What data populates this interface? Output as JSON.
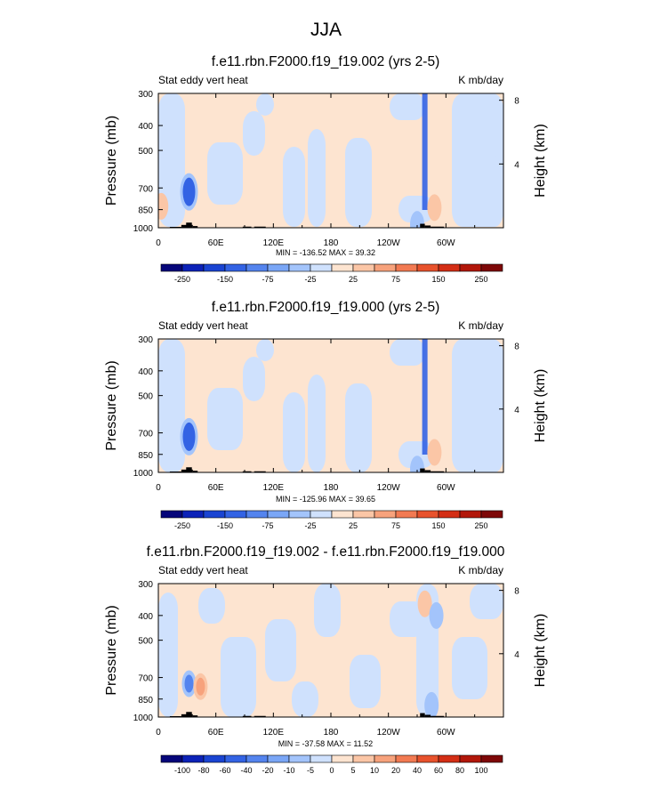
{
  "figure_title": "JJA",
  "chart_data": [
    {
      "type": "contour",
      "title": "f.e11.rbn.F2000.f19_f19.002 (yrs 2-5)",
      "left_label": "Stat eddy vert heat",
      "right_label": "K mb/day",
      "ylabel": "Pressure (mb)",
      "ylabel_right": "Height (km)",
      "x_ticks": [
        "0",
        "60E",
        "120E",
        "180",
        "120W",
        "60W"
      ],
      "x_tick_values": [
        0,
        60,
        120,
        180,
        240,
        300
      ],
      "xlim": [
        0,
        360
      ],
      "y_ticks": [
        "300",
        "400",
        "500",
        "700",
        "850",
        "1000"
      ],
      "y_tick_values": [
        300,
        400,
        500,
        700,
        850,
        1000
      ],
      "ylim": [
        1000,
        300
      ],
      "height_ticks": [
        "8",
        "4"
      ],
      "height_tick_values": [
        8,
        4
      ],
      "min_max": "MIN = -136.52   MAX =  39.32",
      "colorbar_labels": [
        "-250",
        "-150",
        "-75",
        "-25",
        "25",
        "75",
        "150",
        "250"
      ],
      "colorbar_levels": [
        -300,
        -250,
        -200,
        -150,
        -100,
        -75,
        -50,
        -25,
        0,
        25,
        50,
        75,
        100,
        150,
        200,
        250,
        300
      ],
      "features": [
        {
          "lon": 32,
          "p": 725,
          "value": -136.52
        },
        {
          "lon": 278,
          "p": 300,
          "value": -120
        },
        {
          "lon": 3,
          "p": 825,
          "value": 30
        },
        {
          "lon": 288,
          "p": 835,
          "value": 39.32
        },
        {
          "lon": 270,
          "p": 970,
          "value": -50
        }
      ]
    },
    {
      "type": "contour",
      "title": "f.e11.rbn.F2000.f19_f19.000 (yrs 2-5)",
      "left_label": "Stat eddy vert heat",
      "right_label": "K mb/day",
      "ylabel": "Pressure (mb)",
      "ylabel_right": "Height (km)",
      "x_ticks": [
        "0",
        "60E",
        "120E",
        "180",
        "120W",
        "60W"
      ],
      "x_tick_values": [
        0,
        60,
        120,
        180,
        240,
        300
      ],
      "xlim": [
        0,
        360
      ],
      "y_ticks": [
        "300",
        "400",
        "500",
        "700",
        "850",
        "1000"
      ],
      "y_tick_values": [
        300,
        400,
        500,
        700,
        850,
        1000
      ],
      "ylim": [
        1000,
        300
      ],
      "height_ticks": [
        "8",
        "4"
      ],
      "height_tick_values": [
        8,
        4
      ],
      "min_max": "MIN = -125.96   MAX =  39.65",
      "colorbar_labels": [
        "-250",
        "-150",
        "-75",
        "-25",
        "25",
        "75",
        "150",
        "250"
      ],
      "colorbar_levels": [
        -300,
        -250,
        -200,
        -150,
        -100,
        -75,
        -50,
        -25,
        0,
        25,
        50,
        75,
        100,
        150,
        200,
        250,
        300
      ],
      "features": [
        {
          "lon": 32,
          "p": 725,
          "value": -125.96
        },
        {
          "lon": 278,
          "p": 300,
          "value": -110
        },
        {
          "lon": 288,
          "p": 835,
          "value": 39.65
        },
        {
          "lon": 270,
          "p": 970,
          "value": -50
        }
      ]
    },
    {
      "type": "contour",
      "title": "f.e11.rbn.F2000.f19_f19.002 - f.e11.rbn.F2000.f19_f19.000",
      "left_label": "Stat eddy vert heat",
      "right_label": "K mb/day",
      "ylabel": "Pressure (mb)",
      "ylabel_right": "Height (km)",
      "x_ticks": [
        "0",
        "60E",
        "120E",
        "180",
        "120W",
        "60W"
      ],
      "x_tick_values": [
        0,
        60,
        120,
        180,
        240,
        300
      ],
      "xlim": [
        0,
        360
      ],
      "y_ticks": [
        "300",
        "400",
        "500",
        "700",
        "850",
        "1000"
      ],
      "y_tick_values": [
        300,
        400,
        500,
        700,
        850,
        1000
      ],
      "ylim": [
        1000,
        300
      ],
      "height_ticks": [
        "8",
        "4"
      ],
      "height_tick_values": [
        8,
        4
      ],
      "min_max": "MIN = -37.58   MAX =  11.52",
      "colorbar_labels": [
        "-100",
        "-80",
        "-60",
        "-40",
        "-20",
        "-10",
        "-5",
        "0",
        "5",
        "10",
        "20",
        "40",
        "60",
        "80",
        "100"
      ],
      "colorbar_levels": [
        -120,
        -100,
        -80,
        -60,
        -40,
        -20,
        -10,
        -5,
        0,
        5,
        10,
        20,
        40,
        60,
        80,
        100,
        120
      ],
      "features": [
        {
          "lon": 32,
          "p": 740,
          "value": -37.58
        },
        {
          "lon": 44,
          "p": 760,
          "value": 11.52
        },
        {
          "lon": 278,
          "p": 360,
          "value": 8
        },
        {
          "lon": 290,
          "p": 400,
          "value": -8
        },
        {
          "lon": 285,
          "p": 900,
          "value": -6
        }
      ]
    }
  ],
  "colors": {
    "palette": [
      "#06067a",
      "#0c22b8",
      "#1a44d2",
      "#3363e4",
      "#5484ee",
      "#7aa6f6",
      "#a3c4fb",
      "#cfe1fd",
      "#fde4d0",
      "#fbc6a6",
      "#f7a27c",
      "#f27a52",
      "#e8522c",
      "#d42e15",
      "#b2170a",
      "#7e0808"
    ],
    "terrain": "#000000"
  }
}
